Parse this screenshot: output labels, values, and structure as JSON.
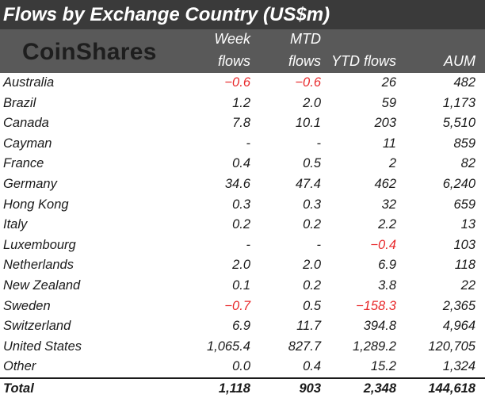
{
  "title": "Flows by Exchange Country (US$m)",
  "logo": "CoinShares",
  "headers": {
    "week_top": "Week",
    "week_bottom": "flows",
    "mtd_top": "MTD",
    "mtd_bottom": "flows",
    "ytd": "YTD flows",
    "aum": "AUM"
  },
  "colors": {
    "title_bg": "#3a3a3a",
    "header_bg": "#595959",
    "negative": "#e8292b"
  },
  "rows": [
    {
      "name": "Australia",
      "week": "-0.6",
      "mtd": "-0.6",
      "ytd": "26",
      "aum": "482"
    },
    {
      "name": "Brazil",
      "week": "1.2",
      "mtd": "2.0",
      "ytd": "59",
      "aum": "1,173"
    },
    {
      "name": "Canada",
      "week": "7.8",
      "mtd": "10.1",
      "ytd": "203",
      "aum": "5,510"
    },
    {
      "name": "Cayman",
      "week": "-",
      "mtd": "-",
      "ytd": "11",
      "aum": "859"
    },
    {
      "name": "France",
      "week": "0.4",
      "mtd": "0.5",
      "ytd": "2",
      "aum": "82"
    },
    {
      "name": "Germany",
      "week": "34.6",
      "mtd": "47.4",
      "ytd": "462",
      "aum": "6,240"
    },
    {
      "name": "Hong Kong",
      "week": "0.3",
      "mtd": "0.3",
      "ytd": "32",
      "aum": "659"
    },
    {
      "name": "Italy",
      "week": "0.2",
      "mtd": "0.2",
      "ytd": "2.2",
      "aum": "13"
    },
    {
      "name": "Luxembourg",
      "week": "-",
      "mtd": "-",
      "ytd": "-0.4",
      "aum": "103"
    },
    {
      "name": "Netherlands",
      "week": "2.0",
      "mtd": "2.0",
      "ytd": "6.9",
      "aum": "118"
    },
    {
      "name": "New Zealand",
      "week": "0.1",
      "mtd": "0.2",
      "ytd": "3.8",
      "aum": "22"
    },
    {
      "name": "Sweden",
      "week": "-0.7",
      "mtd": "0.5",
      "ytd": "-158.3",
      "aum": "2,365"
    },
    {
      "name": "Switzerland",
      "week": "6.9",
      "mtd": "11.7",
      "ytd": "394.8",
      "aum": "4,964"
    },
    {
      "name": "United States",
      "week": "1,065.4",
      "mtd": "827.7",
      "ytd": "1,289.2",
      "aum": "120,705"
    },
    {
      "name": "Other",
      "week": "0.0",
      "mtd": "0.4",
      "ytd": "15.2",
      "aum": "1,324"
    }
  ],
  "total": {
    "name": "Total",
    "week": "1,118",
    "mtd": "903",
    "ytd": "2,348",
    "aum": "144,618"
  }
}
